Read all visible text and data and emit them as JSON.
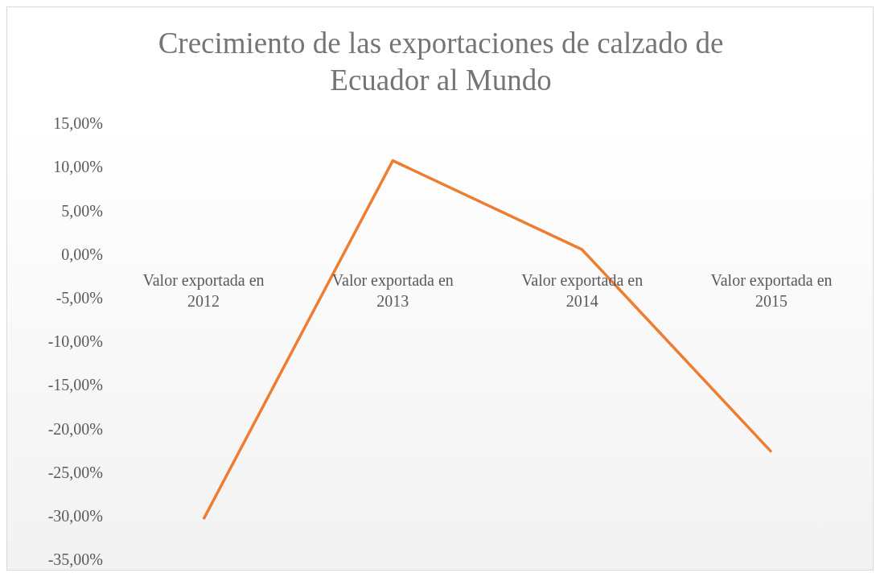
{
  "chart_data": {
    "type": "line",
    "title": "Crecimiento de las exportaciones de calzado de Ecuador al Mundo",
    "categories": [
      "Valor exportada en 2012",
      "Valor exportada en 2013",
      "Valor exportada en 2014",
      "Valor exportada en 2015"
    ],
    "series": [
      {
        "color": "#ed7d31",
        "values": [
          -30.4,
          10.7,
          0.5,
          -22.7
        ]
      }
    ],
    "ylim": [
      -35,
      15
    ],
    "yticks": [
      {
        "value": 15,
        "label": "15,00%"
      },
      {
        "value": 10,
        "label": "10,00%"
      },
      {
        "value": 5,
        "label": "5,00%"
      },
      {
        "value": 0,
        "label": "0,00%"
      },
      {
        "value": -5,
        "label": "-5,00%"
      },
      {
        "value": -10,
        "label": "-10,00%"
      },
      {
        "value": -15,
        "label": "-15,00%"
      },
      {
        "value": -20,
        "label": "-20,00%"
      },
      {
        "value": -25,
        "label": "-25,00%"
      },
      {
        "value": -30,
        "label": "-30,00%"
      },
      {
        "value": -35,
        "label": "-35,00%"
      }
    ],
    "grid": false,
    "legend": false,
    "marker": "none",
    "line_style": "solid"
  }
}
